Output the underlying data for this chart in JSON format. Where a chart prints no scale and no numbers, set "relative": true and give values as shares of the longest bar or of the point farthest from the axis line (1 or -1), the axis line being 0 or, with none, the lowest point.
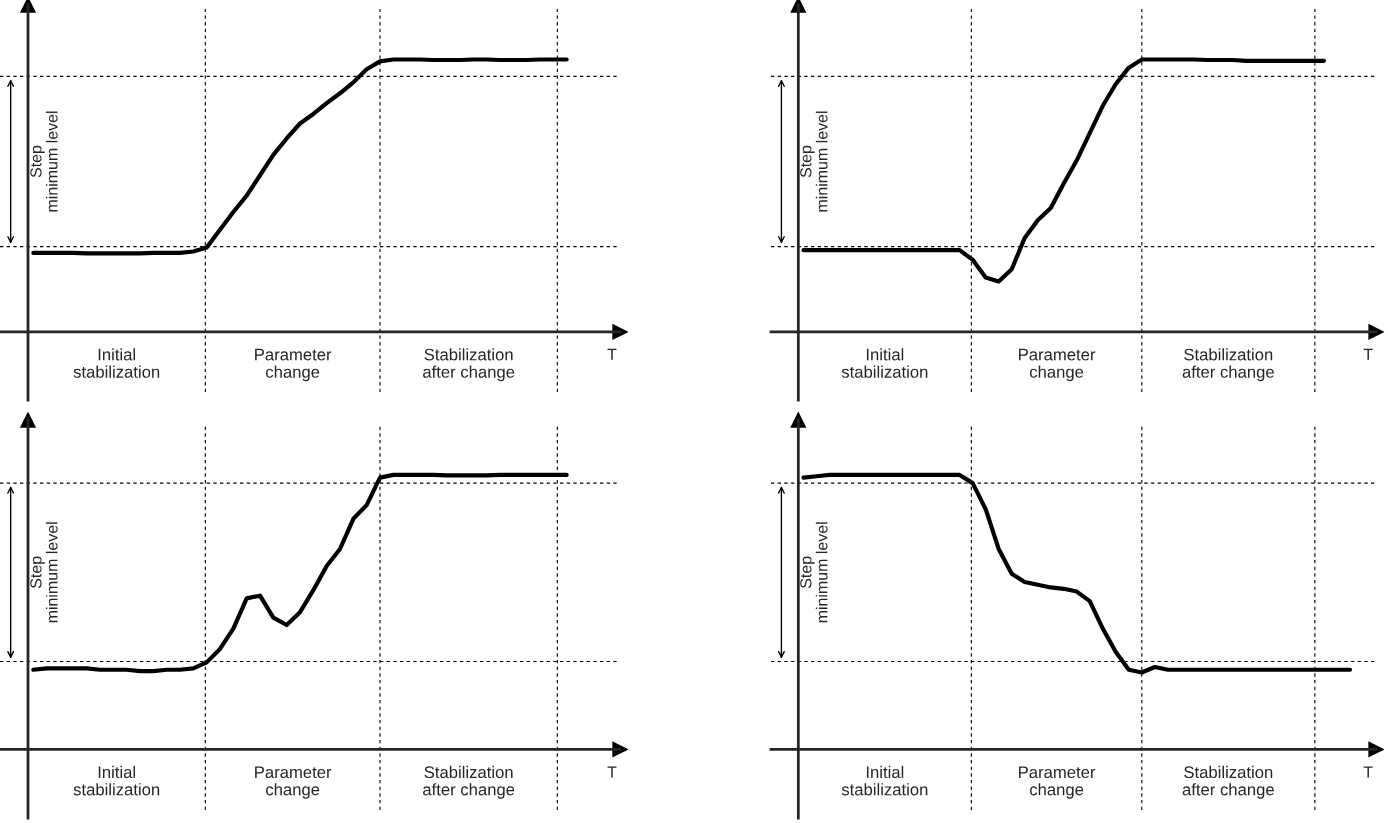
{
  "chart_data": [
    {
      "type": "line",
      "relative": true,
      "xlabel": "T",
      "ylabel": "Step\nminimum level",
      "categories": [
        null,
        null,
        null,
        null,
        null,
        null,
        null,
        null,
        null,
        null,
        null,
        null,
        null,
        null,
        null,
        null,
        null,
        null,
        null,
        null,
        null,
        null,
        null,
        null,
        null,
        null,
        null,
        null,
        null,
        null,
        null,
        null,
        null,
        null,
        null,
        null,
        null,
        null,
        null,
        null,
        null
      ],
      "series": [
        {
          "color": "#000000",
          "values": [
            0.29,
            0.29,
            0.29,
            0.29,
            0.288,
            0.288,
            0.288,
            0.288,
            0.288,
            0.29,
            0.29,
            0.29,
            0.295,
            0.31,
            0.375,
            0.44,
            0.5,
            0.575,
            0.65,
            0.71,
            0.765,
            0.8,
            0.84,
            0.876,
            0.916,
            0.964,
            0.993,
            1.0,
            1.0,
            1.0,
            0.998,
            0.998,
            0.998,
            1.0,
            1.0,
            0.998,
            0.998,
            0.998,
            1.0,
            1.0,
            1.0
          ]
        }
      ],
      "ref_lines": [
        {
          "axis": "y",
          "value": 0.313,
          "line_style": "dashed"
        },
        {
          "axis": "y",
          "value": 0.938,
          "line_style": "dashed"
        }
      ],
      "annotations": [
        "Initial\nstabilization",
        "Parameter\nchange",
        "Stabilization\nafter change"
      ]
    },
    {
      "type": "line",
      "relative": true,
      "xlabel": "T",
      "ylabel": "Step\nminimum level",
      "categories": [
        null,
        null,
        null,
        null,
        null,
        null,
        null,
        null,
        null,
        null,
        null,
        null,
        null,
        null,
        null,
        null,
        null,
        null,
        null,
        null,
        null,
        null,
        null,
        null,
        null,
        null,
        null,
        null,
        null,
        null,
        null,
        null,
        null,
        null,
        null,
        null,
        null,
        null,
        null,
        null,
        null
      ],
      "series": [
        {
          "color": "#000000",
          "values": [
            0.3,
            0.3,
            0.3,
            0.3,
            0.3,
            0.3,
            0.3,
            0.3,
            0.3,
            0.3,
            0.3,
            0.3,
            0.3,
            0.265,
            0.2,
            0.185,
            0.23,
            0.345,
            0.41,
            0.455,
            0.545,
            0.63,
            0.73,
            0.83,
            0.91,
            0.97,
            1.0,
            1.0,
            1.0,
            1.0,
            1.0,
            0.998,
            0.998,
            0.998,
            0.995,
            0.995,
            0.995,
            0.995,
            0.995,
            0.995,
            0.995
          ]
        }
      ],
      "ref_lines": [
        {
          "axis": "y",
          "value": 0.313,
          "line_style": "dashed"
        },
        {
          "axis": "y",
          "value": 0.938,
          "line_style": "dashed"
        }
      ],
      "annotations": [
        "Initial\nstabilization",
        "Parameter\nchange",
        "Stabilization\nafter change"
      ]
    },
    {
      "type": "line",
      "relative": true,
      "xlabel": "T",
      "ylabel": "Step\nminimum level",
      "categories": [
        null,
        null,
        null,
        null,
        null,
        null,
        null,
        null,
        null,
        null,
        null,
        null,
        null,
        null,
        null,
        null,
        null,
        null,
        null,
        null,
        null,
        null,
        null,
        null,
        null,
        null,
        null,
        null,
        null,
        null,
        null,
        null,
        null,
        null,
        null,
        null,
        null,
        null,
        null,
        null,
        null
      ],
      "series": [
        {
          "color": "#000000",
          "values": [
            0.29,
            0.295,
            0.295,
            0.295,
            0.295,
            0.29,
            0.29,
            0.29,
            0.285,
            0.285,
            0.29,
            0.29,
            0.295,
            0.317,
            0.366,
            0.44,
            0.55,
            0.56,
            0.48,
            0.453,
            0.5,
            0.58,
            0.668,
            0.73,
            0.84,
            0.89,
            0.99,
            1.0,
            1.0,
            1.0,
            1.0,
            0.998,
            0.998,
            0.998,
            0.998,
            1.0,
            1.0,
            1.0,
            1.0,
            1.0,
            1.0
          ]
        }
      ],
      "ref_lines": [
        {
          "axis": "y",
          "value": 0.32,
          "line_style": "dashed"
        },
        {
          "axis": "y",
          "value": 0.97,
          "line_style": "dashed"
        }
      ],
      "annotations": [
        "Initial\nstabilization",
        "Parameter\nchange",
        "Stabilization\nafter change"
      ]
    },
    {
      "type": "line",
      "relative": true,
      "xlabel": "T",
      "ylabel": "Step\nminimum level",
      "categories": [
        null,
        null,
        null,
        null,
        null,
        null,
        null,
        null,
        null,
        null,
        null,
        null,
        null,
        null,
        null,
        null,
        null,
        null,
        null,
        null,
        null,
        null,
        null,
        null,
        null,
        null,
        null,
        null,
        null,
        null,
        null,
        null,
        null,
        null,
        null,
        null,
        null,
        null,
        null,
        null,
        null,
        null,
        null
      ],
      "series": [
        {
          "color": "#000000",
          "values": [
            0.99,
            0.995,
            1.0,
            1.0,
            1.0,
            1.0,
            1.0,
            1.0,
            1.0,
            1.0,
            1.0,
            1.0,
            1.0,
            0.97,
            0.875,
            0.73,
            0.64,
            0.61,
            0.6,
            0.59,
            0.585,
            0.575,
            0.54,
            0.44,
            0.355,
            0.29,
            0.28,
            0.3,
            0.29,
            0.29,
            0.29,
            0.29,
            0.29,
            0.29,
            0.29,
            0.29,
            0.29,
            0.29,
            0.29,
            0.29,
            0.29,
            0.29,
            0.29
          ]
        }
      ],
      "ref_lines": [
        {
          "axis": "y",
          "value": 0.32,
          "line_style": "dashed"
        },
        {
          "axis": "y",
          "value": 0.97,
          "line_style": "dashed"
        }
      ],
      "annotations": [
        "Initial\nstabilization",
        "Parameter\nchange",
        "Stabilization\nafter change"
      ]
    }
  ]
}
